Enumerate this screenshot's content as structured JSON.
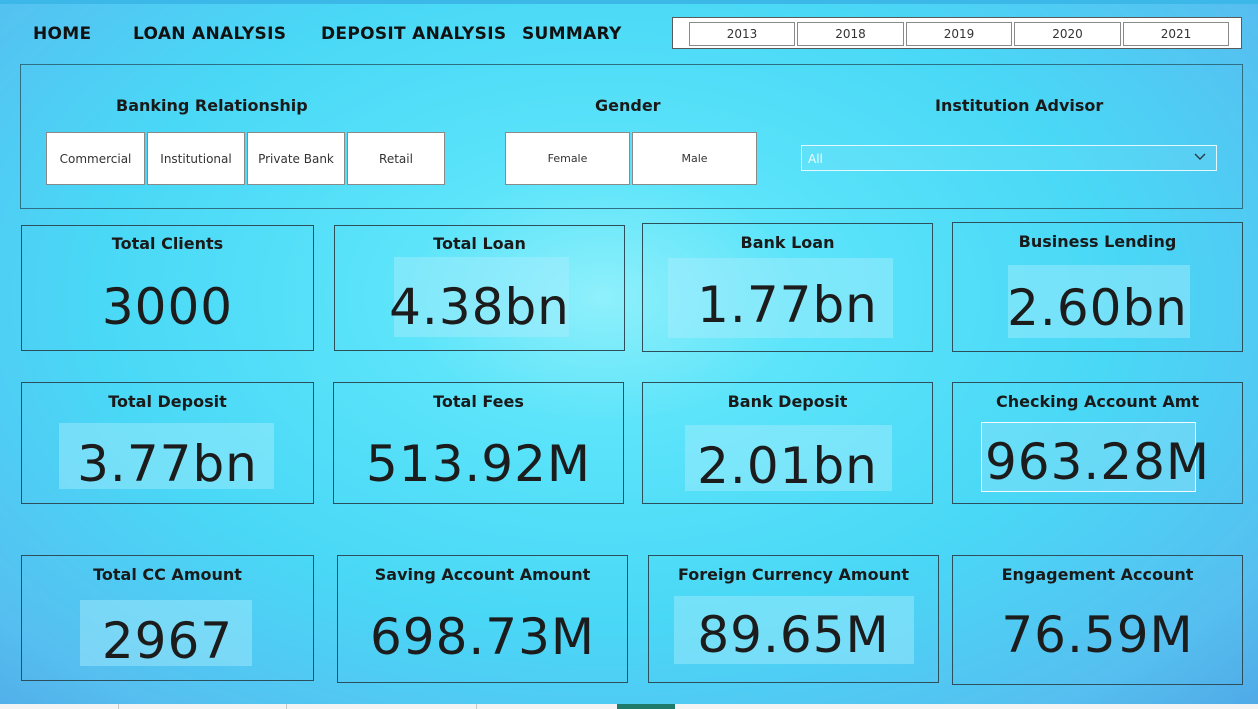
{
  "nav": {
    "home": "HOME",
    "loan_analysis": "LOAN ANALYSIS",
    "deposit_analysis": "DEPOSIT ANALYSIS",
    "summary": "SUMMARY"
  },
  "years": [
    "2013",
    "2018",
    "2019",
    "2020",
    "2021"
  ],
  "filters": {
    "banking_relationship": {
      "title": "Banking Relationship",
      "options": [
        "Commercial",
        "Institutional",
        "Private Bank",
        "Retail"
      ]
    },
    "gender": {
      "title": "Gender",
      "options": [
        "Female",
        "Male"
      ]
    },
    "institution_advisor": {
      "title": "Institution Advisor",
      "selected": "All"
    }
  },
  "cards": [
    {
      "label": "Total Clients",
      "value": "3000"
    },
    {
      "label": "Total Loan",
      "value": "4.38bn"
    },
    {
      "label": "Bank Loan",
      "value": "1.77bn"
    },
    {
      "label": "Business Lending",
      "value": "2.60bn"
    },
    {
      "label": "Total Deposit",
      "value": "3.77bn"
    },
    {
      "label": "Total Fees",
      "value": "513.92M"
    },
    {
      "label": "Bank Deposit",
      "value": "2.01bn"
    },
    {
      "label": "Checking Account Amt",
      "value": "963.28M"
    },
    {
      "label": "Total CC Amount",
      "value": "2967"
    },
    {
      "label": "Saving Account Amount",
      "value": "698.73M"
    },
    {
      "label": "Foreign Currency Amount",
      "value": "89.65M"
    },
    {
      "label": "Engagement Account",
      "value": "76.59M"
    }
  ],
  "colors": {
    "accent_tab": "#1f7a6c",
    "card_border": "#2d4f5c",
    "background": "#49d8f6"
  }
}
